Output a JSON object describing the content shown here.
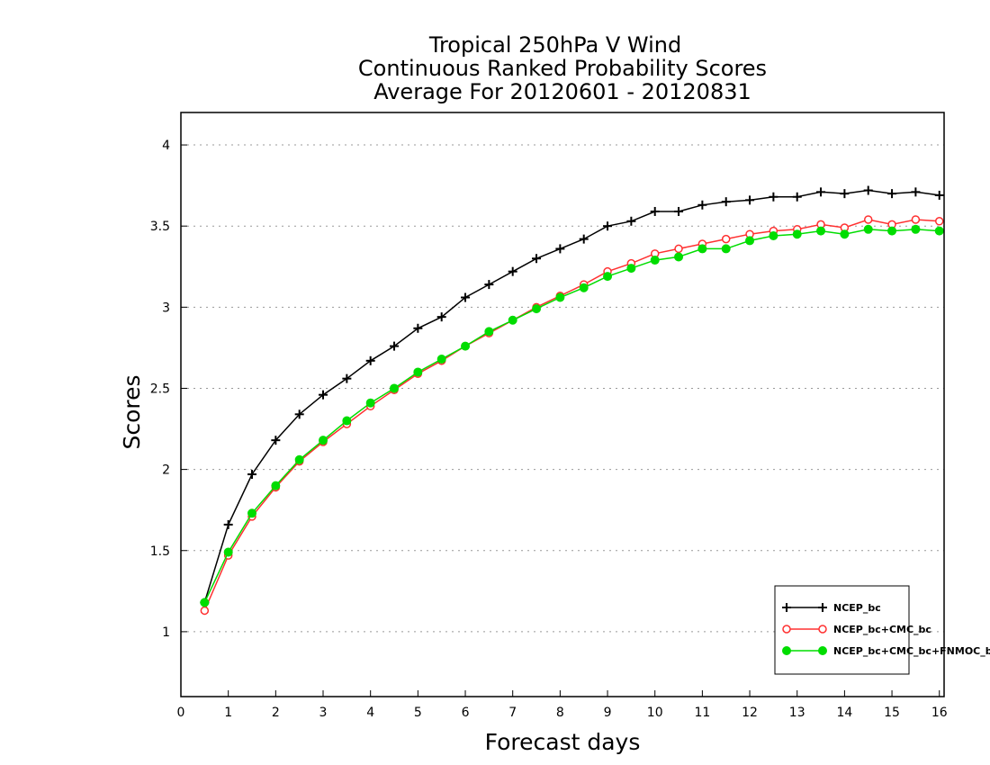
{
  "chart_data": {
    "type": "line",
    "title_lines": [
      "Tropical 250hPa V Wind",
      "Continuous Ranked Probability Scores",
      "Average For 20120601 - 20120831"
    ],
    "xlabel": "Forecast days",
    "ylabel": "Scores",
    "xlim": [
      0,
      16.1
    ],
    "ylim": [
      0.6,
      4.2
    ],
    "x_ticks": [
      "0",
      "1",
      "2",
      "3",
      "4",
      "5",
      "6",
      "7",
      "8",
      "9",
      "10",
      "11",
      "12",
      "13",
      "14",
      "15",
      "16"
    ],
    "y_ticks": [
      "1",
      "1.5",
      "2",
      "2.5",
      "3",
      "3.5",
      "4"
    ],
    "grid": "horizontal dotted",
    "legend_position": "bottom-right",
    "x": [
      0.5,
      1,
      1.5,
      2,
      2.5,
      3,
      3.5,
      4,
      4.5,
      5,
      5.5,
      6,
      6.5,
      7,
      7.5,
      8,
      8.5,
      9,
      9.5,
      10,
      10.5,
      11,
      11.5,
      12,
      12.5,
      13,
      13.5,
      14,
      14.5,
      15,
      15.5,
      16
    ],
    "series": [
      {
        "name": "NCEP_bc",
        "color": "#000000",
        "marker": "plus",
        "values": [
          1.18,
          1.66,
          1.97,
          2.18,
          2.34,
          2.46,
          2.56,
          2.67,
          2.76,
          2.87,
          2.94,
          3.06,
          3.14,
          3.22,
          3.3,
          3.36,
          3.42,
          3.5,
          3.53,
          3.59,
          3.59,
          3.63,
          3.65,
          3.66,
          3.68,
          3.68,
          3.71,
          3.7,
          3.72,
          3.7,
          3.71,
          3.69
        ]
      },
      {
        "name": "NCEP_bc+CMC_bc",
        "color": "#ff3030",
        "marker": "open-circle",
        "values": [
          1.13,
          1.47,
          1.71,
          1.89,
          2.05,
          2.17,
          2.28,
          2.39,
          2.49,
          2.59,
          2.67,
          2.76,
          2.84,
          2.92,
          3.0,
          3.07,
          3.14,
          3.22,
          3.27,
          3.33,
          3.36,
          3.39,
          3.42,
          3.45,
          3.47,
          3.48,
          3.51,
          3.49,
          3.54,
          3.51,
          3.54,
          3.53
        ]
      },
      {
        "name": "NCEP_bc+CMC_bc+FNMOC_bc",
        "color": "#00dd00",
        "marker": "filled-circle",
        "values": [
          1.18,
          1.49,
          1.73,
          1.9,
          2.06,
          2.18,
          2.3,
          2.41,
          2.5,
          2.6,
          2.68,
          2.76,
          2.85,
          2.92,
          2.99,
          3.06,
          3.12,
          3.19,
          3.24,
          3.29,
          3.31,
          3.36,
          3.36,
          3.41,
          3.44,
          3.45,
          3.47,
          3.45,
          3.48,
          3.47,
          3.48,
          3.47
        ]
      }
    ]
  }
}
